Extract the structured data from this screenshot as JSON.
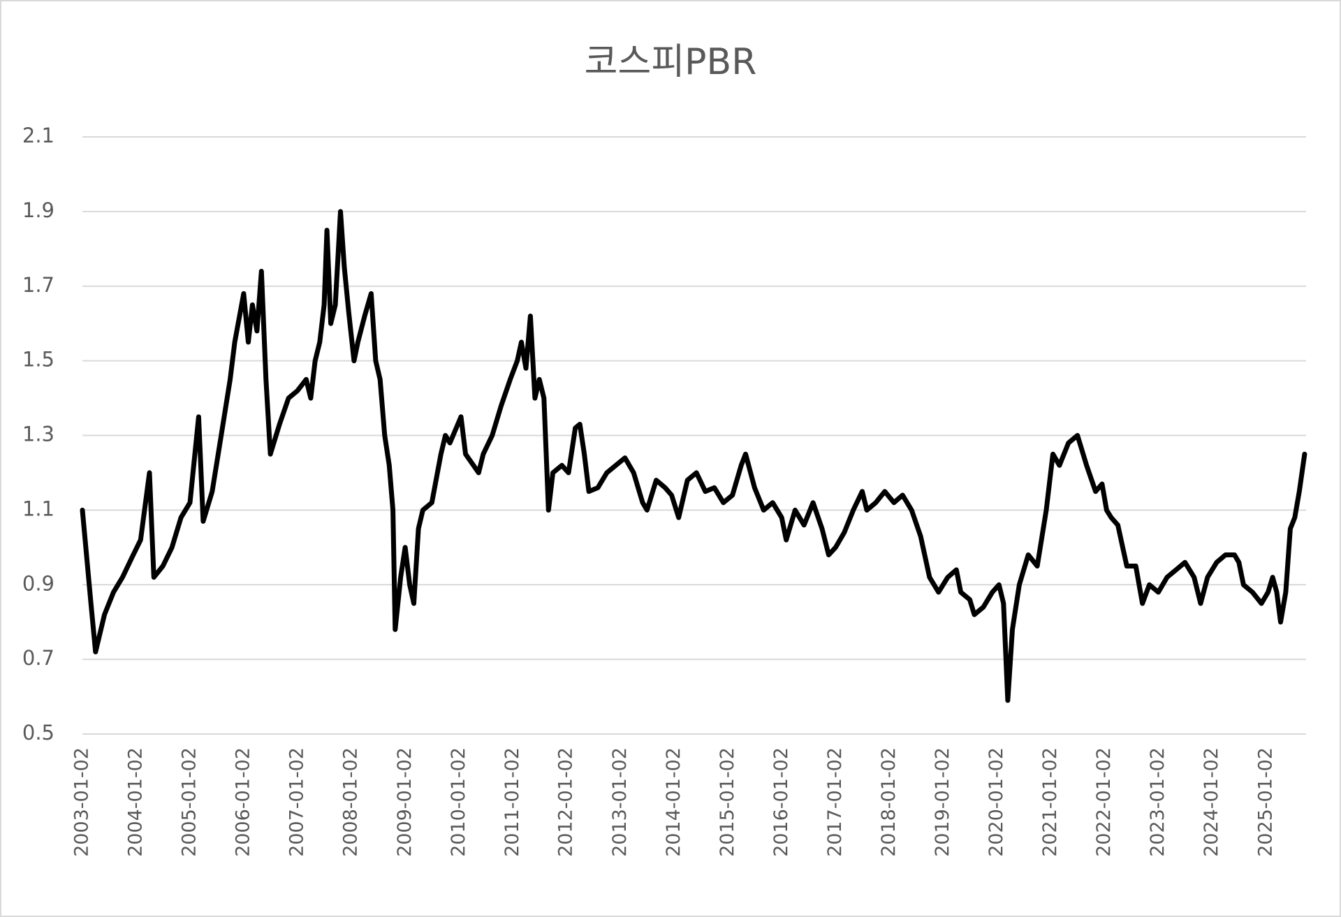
{
  "chart_data": {
    "type": "line",
    "title": "코스피PBR",
    "x": [
      "2003-01-02",
      "2003-03-01",
      "2003-04-01",
      "2003-06-01",
      "2003-08-01",
      "2003-10-01",
      "2003-12-01",
      "2004-02-01",
      "2004-04-01",
      "2004-05-01",
      "2004-07-01",
      "2004-09-01",
      "2004-11-01",
      "2005-01-01",
      "2005-03-01",
      "2005-04-01",
      "2005-06-01",
      "2005-08-01",
      "2005-10-01",
      "2005-11-01",
      "2006-01-01",
      "2006-02-01",
      "2006-03-01",
      "2006-04-01",
      "2006-05-01",
      "2006-06-01",
      "2006-07-01",
      "2006-09-01",
      "2006-11-01",
      "2007-01-01",
      "2007-03-01",
      "2007-04-01",
      "2007-05-01",
      "2007-06-01",
      "2007-07-01",
      "2007-07-20",
      "2007-08-15",
      "2007-09-15",
      "2007-10-20",
      "2007-11-15",
      "2007-12-15",
      "2008-01-20",
      "2008-02-15",
      "2008-04-01",
      "2008-05-15",
      "2008-06-15",
      "2008-07-15",
      "2008-08-15",
      "2008-09-15",
      "2008-10-10",
      "2008-10-25",
      "2008-12-01",
      "2009-01-01",
      "2009-02-01",
      "2009-03-01",
      "2009-04-01",
      "2009-05-01",
      "2009-07-01",
      "2009-09-01",
      "2009-10-01",
      "2009-11-01",
      "2010-01-15",
      "2010-02-15",
      "2010-05-15",
      "2010-06-15",
      "2010-08-15",
      "2010-10-15",
      "2010-12-15",
      "2011-02-01",
      "2011-03-01",
      "2011-04-01",
      "2011-05-01",
      "2011-06-01",
      "2011-07-01",
      "2011-08-01",
      "2011-09-01",
      "2011-10-01",
      "2011-12-01",
      "2012-01-15",
      "2012-03-01",
      "2012-04-01",
      "2012-05-01",
      "2012-06-01",
      "2012-08-01",
      "2012-10-01",
      "2012-12-01",
      "2013-02-01",
      "2013-04-01",
      "2013-06-01",
      "2013-07-01",
      "2013-09-01",
      "2013-11-01",
      "2013-12-15",
      "2014-02-01",
      "2014-04-01",
      "2014-06-01",
      "2014-08-01",
      "2014-10-01",
      "2014-12-01",
      "2015-02-01",
      "2015-04-01",
      "2015-05-01",
      "2015-07-01",
      "2015-09-01",
      "2015-11-01",
      "2016-01-01",
      "2016-02-01",
      "2016-04-01",
      "2016-06-01",
      "2016-08-01",
      "2016-10-01",
      "2016-11-15",
      "2017-01-01",
      "2017-03-01",
      "2017-05-01",
      "2017-07-01",
      "2017-08-01",
      "2017-10-01",
      "2017-12-01",
      "2018-02-01",
      "2018-04-01",
      "2018-06-01",
      "2018-08-01",
      "2018-10-01",
      "2018-12-01",
      "2019-02-01",
      "2019-04-01",
      "2019-05-01",
      "2019-07-01",
      "2019-08-01",
      "2019-10-01",
      "2019-12-01",
      "2020-01-15",
      "2020-02-15",
      "2020-03-15",
      "2020-04-15",
      "2020-06-01",
      "2020-08-01",
      "2020-10-01",
      "2020-12-01",
      "2021-01-15",
      "2021-03-01",
      "2021-05-01",
      "2021-07-01",
      "2021-09-01",
      "2021-11-01",
      "2021-12-15",
      "2022-01-15",
      "2022-02-15",
      "2022-04-01",
      "2022-06-01",
      "2022-08-01",
      "2022-09-15",
      "2022-11-01",
      "2023-01-01",
      "2023-03-01",
      "2023-05-01",
      "2023-07-01",
      "2023-09-01",
      "2023-10-15",
      "2023-12-01",
      "2024-02-01",
      "2024-04-01",
      "2024-06-01",
      "2024-07-01",
      "2024-08-01",
      "2024-10-01",
      "2024-12-01",
      "2025-01-15",
      "2025-02-15",
      "2025-03-15",
      "2025-04-10",
      "2025-05-15",
      "2025-06-15",
      "2025-07-15",
      "2025-08-15",
      "2025-09-20"
    ],
    "series": [
      {
        "name": "코스피PBR",
        "color": "#000000",
        "values": [
          1.1,
          0.85,
          0.72,
          0.82,
          0.88,
          0.92,
          0.97,
          1.02,
          1.2,
          0.92,
          0.95,
          1.0,
          1.08,
          1.12,
          1.35,
          1.07,
          1.15,
          1.3,
          1.45,
          1.55,
          1.68,
          1.55,
          1.65,
          1.58,
          1.74,
          1.45,
          1.25,
          1.33,
          1.4,
          1.42,
          1.45,
          1.4,
          1.5,
          1.55,
          1.65,
          1.85,
          1.6,
          1.65,
          1.9,
          1.75,
          1.63,
          1.5,
          1.55,
          1.62,
          1.68,
          1.5,
          1.45,
          1.3,
          1.22,
          1.1,
          0.78,
          0.92,
          1.0,
          0.9,
          0.85,
          1.05,
          1.1,
          1.12,
          1.25,
          1.3,
          1.28,
          1.35,
          1.25,
          1.2,
          1.25,
          1.3,
          1.38,
          1.45,
          1.5,
          1.55,
          1.48,
          1.62,
          1.4,
          1.45,
          1.4,
          1.1,
          1.2,
          1.22,
          1.2,
          1.32,
          1.33,
          1.25,
          1.15,
          1.16,
          1.2,
          1.22,
          1.24,
          1.2,
          1.12,
          1.1,
          1.18,
          1.16,
          1.14,
          1.08,
          1.18,
          1.2,
          1.15,
          1.16,
          1.12,
          1.14,
          1.22,
          1.25,
          1.16,
          1.1,
          1.12,
          1.08,
          1.02,
          1.1,
          1.06,
          1.12,
          1.05,
          0.98,
          1.0,
          1.04,
          1.1,
          1.15,
          1.1,
          1.12,
          1.15,
          1.12,
          1.14,
          1.1,
          1.03,
          0.92,
          0.88,
          0.92,
          0.94,
          0.88,
          0.86,
          0.82,
          0.84,
          0.88,
          0.9,
          0.85,
          0.59,
          0.78,
          0.9,
          0.98,
          0.95,
          1.1,
          1.25,
          1.22,
          1.28,
          1.3,
          1.22,
          1.15,
          1.17,
          1.1,
          1.08,
          1.06,
          0.95,
          0.95,
          0.85,
          0.9,
          0.88,
          0.92,
          0.94,
          0.96,
          0.92,
          0.85,
          0.92,
          0.96,
          0.98,
          0.98,
          0.96,
          0.9,
          0.88,
          0.85,
          0.88,
          0.92,
          0.88,
          0.8,
          0.88,
          1.05,
          1.08,
          1.15,
          1.25
        ]
      }
    ],
    "xlim": [
      "2003-01-02",
      "2025-09-30"
    ],
    "xticks": [
      "2003-01-02",
      "2004-01-02",
      "2005-01-02",
      "2006-01-02",
      "2007-01-02",
      "2008-01-02",
      "2009-01-02",
      "2010-01-02",
      "2011-01-02",
      "2012-01-02",
      "2013-01-02",
      "2014-01-02",
      "2015-01-02",
      "2016-01-02",
      "2017-01-02",
      "2018-01-02",
      "2019-01-02",
      "2020-01-02",
      "2021-01-02",
      "2022-01-02",
      "2023-01-02",
      "2024-01-02",
      "2025-01-02"
    ],
    "ylim": [
      0.5,
      2.1
    ],
    "yticks": [
      0.5,
      0.7,
      0.9,
      1.1,
      1.3,
      1.5,
      1.7,
      1.9,
      2.1
    ],
    "grid": true
  }
}
